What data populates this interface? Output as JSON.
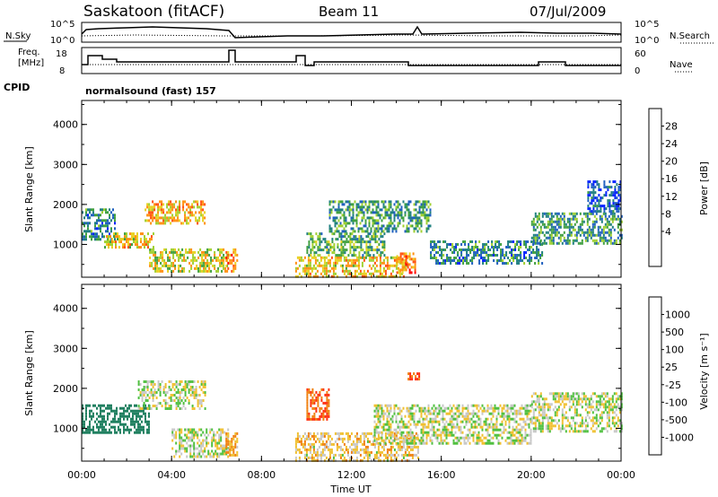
{
  "header": {
    "site": "Saskatoon (fitACF)",
    "beam": "Beam 11",
    "date": "07/Jul/2009"
  },
  "top_panels": {
    "nsky_label": "N.Sky",
    "nsky_ticks": [
      "10^5",
      "10^0"
    ],
    "nsearch_label": "N.Search",
    "nsearch_ticks": [
      "10^5",
      "10^0"
    ],
    "freq_label_1": "Freq.",
    "freq_label_2": "[MHz]",
    "freq_ticks": [
      "18",
      "8"
    ],
    "nave_label": "Nave",
    "nave_ticks": [
      "60",
      "0"
    ],
    "cpid_label": "CPID",
    "cpid_value": "normalsound (fast) 157"
  },
  "power_scale": {
    "label": "Power [dB]",
    "ticks": [
      "28",
      "24",
      "20",
      "16",
      "12",
      "8",
      "4"
    ],
    "colors": [
      "#0020ff",
      "#2060c0",
      "#208080",
      "#40a040",
      "#a0d030",
      "#e8d020",
      "#ff9010",
      "#ff5010",
      "#ff0000"
    ]
  },
  "velocity_scale": {
    "label": "Velocity [m s⁻¹]",
    "ticks": [
      "1000",
      "500",
      "100",
      "25",
      "-25",
      "-100",
      "-500",
      "-1000"
    ],
    "colors": [
      "#2040c0",
      "#3070c0",
      "#208060",
      "#50c040",
      "#c8c8c8",
      "#f0c030",
      "#f08010",
      "#ff3010",
      "#ff0000"
    ]
  },
  "chart_data": [
    {
      "type": "heatmap",
      "title": "",
      "quantity": "Power",
      "ylabel": "Slant Range [km]",
      "xlabel": "",
      "x_ticks": [
        "00:00",
        "04:00",
        "08:00",
        "12:00",
        "16:00",
        "20:00",
        "00:00"
      ],
      "y_ticks": [
        "4000",
        "3000",
        "2000",
        "1000"
      ],
      "ylim": [
        180,
        4600
      ],
      "xlim_hours": [
        0,
        24
      ],
      "data_gap_hours": [
        7.0,
        9.4
      ],
      "echo_regions": [
        {
          "t0": 0.0,
          "t1": 1.5,
          "r0": 1100,
          "r1": 1900,
          "power_db": 10
        },
        {
          "t0": 1.0,
          "t1": 3.2,
          "r0": 900,
          "r1": 1300,
          "power_db": 22
        },
        {
          "t0": 2.8,
          "t1": 5.5,
          "r0": 1500,
          "r1": 2100,
          "power_db": 24
        },
        {
          "t0": 3.0,
          "t1": 6.5,
          "r0": 300,
          "r1": 900,
          "power_db": 20
        },
        {
          "t0": 6.4,
          "t1": 6.9,
          "r0": 300,
          "r1": 900,
          "power_db": 28
        },
        {
          "t0": 9.5,
          "t1": 14.5,
          "r0": 200,
          "r1": 700,
          "power_db": 22
        },
        {
          "t0": 10.0,
          "t1": 13.5,
          "r0": 700,
          "r1": 1300,
          "power_db": 14
        },
        {
          "t0": 11.0,
          "t1": 15.5,
          "r0": 1300,
          "r1": 2100,
          "power_db": 12
        },
        {
          "t0": 14.0,
          "t1": 14.8,
          "r0": 300,
          "r1": 800,
          "power_db": 28
        },
        {
          "t0": 15.5,
          "t1": 20.5,
          "r0": 500,
          "r1": 1100,
          "power_db": 10
        },
        {
          "t0": 20.0,
          "t1": 24.0,
          "r0": 1000,
          "r1": 1800,
          "power_db": 12
        },
        {
          "t0": 22.5,
          "t1": 24.0,
          "r0": 1800,
          "r1": 2600,
          "power_db": 6
        }
      ]
    },
    {
      "type": "heatmap",
      "title": "",
      "quantity": "Velocity",
      "ylabel": "Slant Range [km]",
      "xlabel": "Time UT",
      "x_ticks": [
        "00:00",
        "04:00",
        "08:00",
        "12:00",
        "16:00",
        "20:00",
        "00:00"
      ],
      "y_ticks": [
        "4000",
        "3000",
        "2000",
        "1000"
      ],
      "ylim": [
        180,
        4600
      ],
      "xlim_hours": [
        0,
        24
      ],
      "data_gap_hours": [
        7.0,
        9.4
      ],
      "echo_regions": [
        {
          "t0": 0.0,
          "t1": 3.0,
          "r0": 900,
          "r1": 1600,
          "velocity": 300
        },
        {
          "t0": 2.5,
          "t1": 5.5,
          "r0": 1500,
          "r1": 2200,
          "velocity": 0
        },
        {
          "t0": 4.0,
          "t1": 6.5,
          "r0": 300,
          "r1": 1000,
          "velocity": 0
        },
        {
          "t0": 6.4,
          "t1": 6.9,
          "r0": 300,
          "r1": 900,
          "velocity": -100
        },
        {
          "t0": 9.5,
          "t1": 15.0,
          "r0": 200,
          "r1": 900,
          "velocity": -50
        },
        {
          "t0": 10.0,
          "t1": 11.0,
          "r0": 1200,
          "r1": 2000,
          "velocity": -500
        },
        {
          "t0": 14.5,
          "t1": 15.0,
          "r0": 2200,
          "r1": 2400,
          "velocity": -500
        },
        {
          "t0": 13.0,
          "t1": 20.0,
          "r0": 600,
          "r1": 1600,
          "velocity": 0
        },
        {
          "t0": 20.0,
          "t1": 24.0,
          "r0": 900,
          "r1": 1900,
          "velocity": 0
        }
      ]
    }
  ]
}
